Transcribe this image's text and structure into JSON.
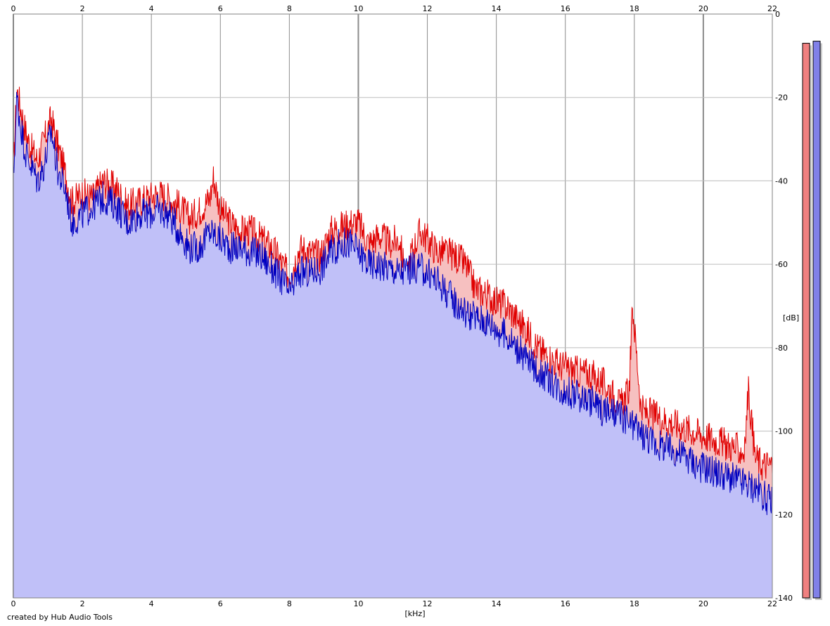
{
  "chart_data": {
    "type": "area",
    "title": "",
    "xlabel": "[kHz]",
    "ylabel": "[dB]",
    "xlim": [
      0,
      22
    ],
    "ylim": [
      -140,
      0
    ],
    "x_ticks": [
      0,
      2,
      4,
      6,
      8,
      10,
      12,
      14,
      16,
      18,
      20,
      22
    ],
    "y_ticks": [
      0,
      -20,
      -40,
      -60,
      -80,
      -100,
      -120,
      -140
    ],
    "grid": true,
    "legend": "none",
    "series": [
      {
        "color": "#e00000",
        "fill": "#f6c0c0",
        "x": [
          0,
          0.1,
          0.2,
          0.35,
          0.5,
          0.7,
          0.9,
          1.1,
          1.3,
          1.5,
          1.7,
          2,
          2.3,
          2.6,
          3,
          3.3,
          3.6,
          3.9,
          4.2,
          4.5,
          4.8,
          5.1,
          5.4,
          5.7,
          5.8,
          6,
          6.3,
          6.6,
          6.9,
          7.2,
          7.5,
          7.8,
          8,
          8.3,
          8.6,
          8.9,
          9.2,
          9.5,
          9.8,
          10,
          10.3,
          10.6,
          10.9,
          11.2,
          11.4,
          11.5,
          11.8,
          12,
          12.3,
          12.5,
          12.8,
          13.1,
          13.4,
          13.7,
          14,
          14.3,
          14.6,
          14.9,
          15.2,
          15.5,
          15.8,
          16.1,
          16.4,
          16.7,
          17,
          17.3,
          17.6,
          17.85,
          17.95,
          18.2,
          18.5,
          18.8,
          19.1,
          19.4,
          19.7,
          20,
          20.3,
          20.6,
          20.9,
          21.2,
          21.3,
          21.5,
          21.7,
          22
        ],
        "y": [
          -37,
          -18,
          -22,
          -28,
          -32,
          -35,
          -30,
          -25,
          -32,
          -38,
          -45,
          -43,
          -44,
          -40,
          -42,
          -46,
          -45,
          -44,
          -43,
          -44,
          -46,
          -49,
          -47,
          -44,
          -39,
          -47,
          -50,
          -52,
          -52,
          -54,
          -56,
          -60,
          -63,
          -56,
          -57,
          -58,
          -52,
          -51,
          -50,
          -50,
          -55,
          -53,
          -55,
          -54,
          -65,
          -58,
          -52,
          -54,
          -57,
          -57,
          -58,
          -60,
          -66,
          -67,
          -69,
          -70,
          -73,
          -76,
          -80,
          -82,
          -84,
          -85,
          -86,
          -86,
          -88,
          -90,
          -94,
          -90,
          -70,
          -95,
          -96,
          -97,
          -98,
          -99,
          -100,
          -101,
          -102,
          -103,
          -104,
          -105,
          -90,
          -106,
          -108,
          -108
        ]
      },
      {
        "color": "#0000c0",
        "fill": "#c0c0f8",
        "x": [
          0,
          0.1,
          0.2,
          0.35,
          0.5,
          0.7,
          0.9,
          1.1,
          1.3,
          1.5,
          1.7,
          2,
          2.3,
          2.6,
          3,
          3.3,
          3.6,
          3.9,
          4.2,
          4.5,
          4.8,
          5.1,
          5.4,
          5.7,
          6,
          6.3,
          6.6,
          6.9,
          7.2,
          7.5,
          7.8,
          8,
          8.3,
          8.6,
          8.9,
          9.2,
          9.5,
          9.8,
          10,
          10.3,
          10.6,
          10.9,
          11.2,
          11.5,
          11.8,
          12,
          12.3,
          12.6,
          12.9,
          13.2,
          13.5,
          13.8,
          14.1,
          14.4,
          14.7,
          15,
          15.3,
          15.6,
          15.9,
          16.2,
          16.5,
          16.8,
          17.1,
          17.4,
          17.7,
          18,
          18.3,
          18.6,
          18.9,
          19.2,
          19.5,
          19.8,
          20.1,
          20.4,
          20.7,
          21,
          21.3,
          21.6,
          21.8,
          22
        ],
        "y": [
          -40,
          -20,
          -26,
          -33,
          -36,
          -40,
          -36,
          -28,
          -38,
          -42,
          -50,
          -48,
          -46,
          -44,
          -46,
          -50,
          -48,
          -48,
          -47,
          -48,
          -52,
          -56,
          -56,
          -52,
          -54,
          -56,
          -56,
          -57,
          -58,
          -61,
          -64,
          -67,
          -62,
          -62,
          -61,
          -57,
          -55,
          -55,
          -57,
          -60,
          -60,
          -61,
          -62,
          -61,
          -61,
          -62,
          -64,
          -67,
          -70,
          -72,
          -73,
          -74,
          -76,
          -78,
          -81,
          -84,
          -86,
          -88,
          -90,
          -91,
          -92,
          -93,
          -95,
          -96,
          -97,
          -99,
          -101,
          -103,
          -104,
          -105,
          -106,
          -108,
          -109,
          -110,
          -111,
          -112,
          -113,
          -114,
          -116,
          -117
        ]
      }
    ],
    "meters": [
      {
        "level_db": -7,
        "color": "#f08080"
      },
      {
        "level_db": -6.5,
        "color": "#8080e8"
      }
    ]
  },
  "footer": {
    "credit": "created by Hub Audio Tools"
  }
}
